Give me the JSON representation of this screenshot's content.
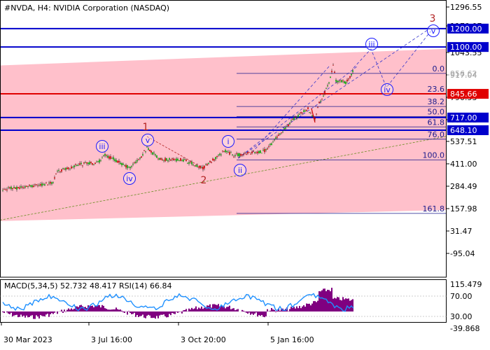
{
  "chart_data": {
    "type": "candlestick",
    "title": "#NVDA, H4:  NVIDIA Corporation (NASDAQ)",
    "price_axis": [
      "1296.55",
      "1170.07",
      "1043.55",
      "917.04",
      "790.53",
      "664.01",
      "537.51",
      "411.00",
      "284.49",
      "157.98",
      "31.47",
      "-95.04"
    ],
    "price_range": [
      -150,
      1340
    ],
    "date_axis": [
      "30 Mar 2023",
      "3 Jul 16:00",
      "3 Oct 20:00",
      "5 Jan 16:00"
    ],
    "current_price": "956.62",
    "levels": [
      {
        "value": 1200.0,
        "label": "1200.00",
        "color": "#0000cc"
      },
      {
        "value": 1100.0,
        "label": "1100.00",
        "color": "#0000cc"
      },
      {
        "value": 845.66,
        "label": "845.66",
        "color": "#e00000"
      },
      {
        "value": 717.0,
        "label": "717.00",
        "color": "#0000cc"
      },
      {
        "value": 648.1,
        "label": "648.10",
        "color": "#0000cc"
      }
    ],
    "fibonacci": [
      {
        "label": "0.0",
        "value": 956.62
      },
      {
        "label": "23.6",
        "value": 845.66
      },
      {
        "label": "38.2",
        "value": 777.0
      },
      {
        "label": "50.0",
        "value": 721.6
      },
      {
        "label": "61.8",
        "value": 666.2
      },
      {
        "label": "76.0",
        "value": 599.5
      },
      {
        "label": "100.0",
        "value": 486.7
      },
      {
        "label": "161.8",
        "value": 196.3
      }
    ],
    "wave_labels": {
      "red": [
        "1",
        "2",
        "3"
      ],
      "blue": [
        "iii",
        "iv",
        "v",
        "i",
        "ii",
        "iii",
        "iv",
        "v"
      ]
    },
    "indicator": {
      "label": "MACD(5,34,5) 52.732 48.417 RSI(14) 66.84",
      "axis": [
        "115.479",
        "70.00",
        "30.00",
        "-39.868"
      ]
    },
    "colors": {
      "channel_fill": "#ffc0cb",
      "level_blue": "#0000cc",
      "level_red": "#e00000",
      "candle_up": "#00aa00",
      "candle_down": "#cc0000",
      "macd_hist": "#800080",
      "rsi_line": "#1e90ff",
      "wave_red": "#b22222",
      "wave_blue": "#1a1aff"
    }
  }
}
